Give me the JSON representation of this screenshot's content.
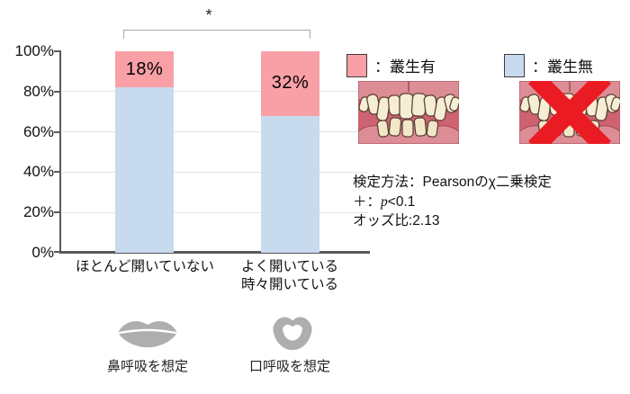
{
  "chart_data": {
    "type": "bar",
    "stacked": true,
    "title": "",
    "categories": [
      "ほとんど開いていない",
      "よく開いている 時々開いている"
    ],
    "series": [
      {
        "name": "叢生有",
        "color": "#f8a0a6",
        "values": [
          18,
          32
        ]
      },
      {
        "name": "叢生無",
        "color": "#c7daee",
        "values": [
          82,
          68
        ]
      }
    ],
    "data_labels": [
      "18%",
      "32%"
    ],
    "ylim": [
      0,
      100
    ],
    "yticks": [
      "100%",
      "80%",
      "60%",
      "40%",
      "20%",
      "0%"
    ],
    "grid": true,
    "legend_position": "top-right",
    "significance_marker": "*",
    "significance_between": [
      0,
      1
    ]
  },
  "axes": {
    "cat1": "ほとんど開いていない",
    "cat2_line1": "よく開いている",
    "cat2_line2": "時々開いている"
  },
  "legend": {
    "present_label": "：叢生有",
    "absent_label": "：叢生無"
  },
  "notes": {
    "line1": "検定方法：Pearsonのχ二乗検定",
    "line2_prefix": "＋：",
    "line2_italic": "p",
    "line2_rest": "<0.1",
    "line3": "オッズ比:2.13"
  },
  "footer": {
    "nasal": "鼻呼吸を想定",
    "mouth": "口呼吸を想定"
  },
  "icons": {
    "crowding_example": "crowded-teeth-illustration",
    "no_crowding_example": "crowded-teeth-illustration-crossed-out",
    "nasal_breathing": "closed-lips-icon",
    "mouth_breathing": "open-lips-icon"
  },
  "colors": {
    "crowding_present": "#f8a0a6",
    "crowding_absent": "#c7daee",
    "axis": "#595959",
    "grid": "#e4e4e4",
    "bracket": "#ababab",
    "lips": "#aeaeae",
    "cross": "#ea1b22"
  }
}
